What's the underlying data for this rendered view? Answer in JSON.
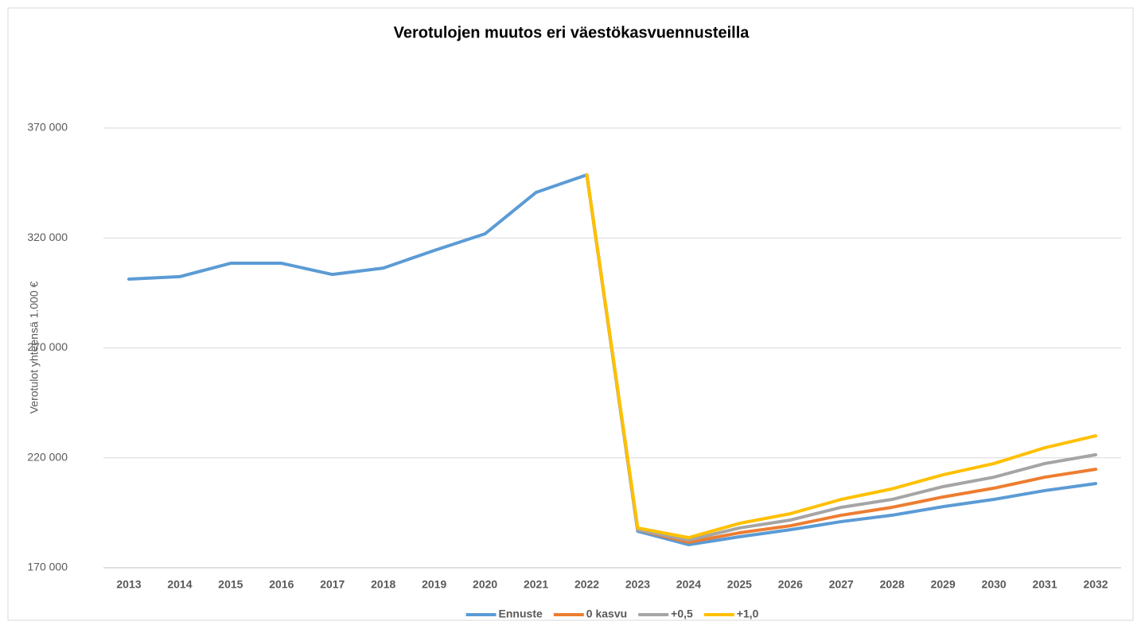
{
  "chart_data": {
    "type": "line",
    "title": "Verotulojen muutos eri väestökasvuennusteilla",
    "y_label": "Verotulot yhteensä 1.000 €",
    "categories": [
      "2013",
      "2014",
      "2015",
      "2016",
      "2017",
      "2018",
      "2019",
      "2020",
      "2021",
      "2022",
      "2023",
      "2024",
      "2025",
      "2026",
      "2027",
      "2028",
      "2029",
      "2030",
      "2031",
      "2032"
    ],
    "series": [
      {
        "name": "Ennuste",
        "color": "#5b9bd5",
        "values": [
          301300,
          302400,
          308500,
          308500,
          303400,
          306300,
          314300,
          321900,
          340700,
          348700,
          186600,
          180500,
          184100,
          187300,
          191000,
          193900,
          197800,
          201100,
          205100,
          208300
        ]
      },
      {
        "name": "0 kasvu",
        "color": "#ed7d31",
        "values": [
          null,
          null,
          null,
          null,
          null,
          null,
          null,
          null,
          null,
          348700,
          187300,
          181600,
          185900,
          189100,
          193900,
          197500,
          202200,
          206200,
          211200,
          214800
        ]
      },
      {
        "name": "+0,5",
        "color": "#a5a5a5",
        "values": [
          null,
          null,
          null,
          null,
          null,
          null,
          null,
          null,
          null,
          348700,
          187300,
          182600,
          188100,
          191700,
          197500,
          201100,
          206900,
          211200,
          217400,
          221400
        ]
      },
      {
        "name": "+1,0",
        "color": "#ffc000",
        "values": [
          null,
          null,
          null,
          null,
          null,
          null,
          null,
          null,
          null,
          348700,
          188100,
          183700,
          190200,
          194600,
          201100,
          205900,
          212300,
          217400,
          224600,
          230000
        ]
      }
    ],
    "ylim": [
      170000,
      390000
    ],
    "yticks": [
      {
        "value": 170000,
        "label": "170 000"
      },
      {
        "value": 220000,
        "label": "220 000"
      },
      {
        "value": 270000,
        "label": "270 000"
      },
      {
        "value": 320000,
        "label": "320 000"
      },
      {
        "value": 370000,
        "label": "370 000"
      }
    ],
    "grid": true,
    "legend": "bottom"
  }
}
